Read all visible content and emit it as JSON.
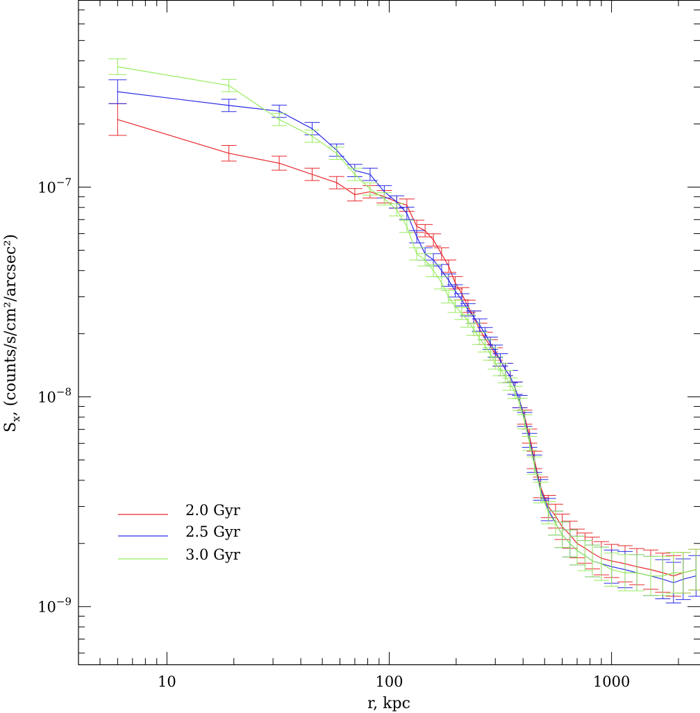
{
  "chart_data": {
    "type": "line",
    "title": "",
    "xlabel": "r, kpc",
    "ylabel": "S_x, (counts/s/cm²/arcsec²)",
    "xscale": "log",
    "yscale": "log",
    "xlim": [
      4,
      2500
    ],
    "ylim": [
      5.3e-10,
      7.8e-07
    ],
    "grid": false,
    "legend_position": "lower-left",
    "x_ticks": [
      {
        "value": 10,
        "label": "10"
      },
      {
        "value": 100,
        "label": "100"
      },
      {
        "value": 1000,
        "label": "1000"
      }
    ],
    "y_ticks": [
      {
        "value": 1e-07,
        "base": "10",
        "exp": "−7"
      },
      {
        "value": 1e-08,
        "base": "10",
        "exp": "−8"
      },
      {
        "value": 1e-09,
        "base": "10",
        "exp": "−9"
      }
    ],
    "series": [
      {
        "name": "2.0 Gyr",
        "color": "#e8262a",
        "x": [
          6,
          19,
          32,
          45,
          58,
          70,
          82,
          95,
          108,
          120,
          133,
          145,
          158,
          172,
          185,
          198,
          212,
          226,
          240,
          255,
          270,
          285,
          300,
          316,
          333,
          350,
          368,
          387,
          407,
          428,
          450,
          480,
          520,
          560,
          600,
          650,
          700,
          760,
          820,
          900,
          1000,
          1150,
          1300,
          1500,
          1700,
          1900,
          2100,
          2400
        ],
        "y": [
          2.1e-07,
          1.45e-07,
          1.3e-07,
          1.15e-07,
          1.05e-07,
          9.2e-08,
          9.5e-08,
          9e-08,
          8.5e-08,
          8.2e-08,
          6.5e-08,
          6.2e-08,
          5.6e-08,
          4.8e-08,
          4.2e-08,
          3.5e-08,
          3.1e-08,
          2.7e-08,
          2.4e-08,
          2.1e-08,
          1.9e-08,
          1.75e-08,
          1.6e-08,
          1.5e-08,
          1.35e-08,
          1.25e-08,
          1.1e-08,
          9.5e-09,
          8e-09,
          6.5e-09,
          5e-09,
          3.7e-09,
          3e-09,
          2.7e-09,
          2.4e-09,
          2.2e-09,
          2e-09,
          1.9e-09,
          1.8e-09,
          1.7e-09,
          1.65e-09,
          1.6e-09,
          1.55e-09,
          1.5e-09,
          1.45e-09,
          1.4e-09,
          1.45e-09,
          1.5e-09
        ],
        "err": [
          0.19,
          0.09,
          0.08,
          0.07,
          0.07,
          0.07,
          0.07,
          0.07,
          0.07,
          0.07,
          0.07,
          0.07,
          0.07,
          0.07,
          0.07,
          0.07,
          0.07,
          0.07,
          0.07,
          0.07,
          0.07,
          0.07,
          0.07,
          0.07,
          0.07,
          0.07,
          0.07,
          0.07,
          0.08,
          0.08,
          0.1,
          0.12,
          0.13,
          0.14,
          0.15,
          0.16,
          0.17,
          0.18,
          0.19,
          0.2,
          0.2,
          0.22,
          0.22,
          0.24,
          0.24,
          0.25,
          0.25,
          0.25
        ]
      },
      {
        "name": "2.5 Gyr",
        "color": "#2a2ae6",
        "x": [
          6,
          19,
          32,
          45,
          58,
          70,
          82,
          95,
          108,
          120,
          133,
          145,
          158,
          172,
          185,
          198,
          212,
          226,
          240,
          255,
          270,
          285,
          300,
          316,
          333,
          350,
          368,
          387,
          407,
          428,
          450,
          480,
          520,
          560,
          600,
          650,
          700,
          760,
          820,
          900,
          1000,
          1150,
          1300,
          1500,
          1700,
          1900,
          2100,
          2400
        ],
        "y": [
          2.85e-07,
          2.45e-07,
          2.3e-07,
          1.9e-07,
          1.5e-07,
          1.2e-07,
          1.15e-07,
          9.5e-08,
          8.5e-08,
          7.5e-08,
          5.8e-08,
          4.8e-08,
          4.5e-08,
          4e-08,
          3.6e-08,
          3.2e-08,
          2.9e-08,
          2.6e-08,
          2.4e-08,
          2.2e-08,
          2e-08,
          1.8e-08,
          1.65e-08,
          1.5e-08,
          1.35e-08,
          1.25e-08,
          1.1e-08,
          9.5e-09,
          7.8e-09,
          6.2e-09,
          4.8e-09,
          3.6e-09,
          2.9e-09,
          2.5e-09,
          2.2e-09,
          2e-09,
          1.85e-09,
          1.75e-09,
          1.65e-09,
          1.6e-09,
          1.55e-09,
          1.5e-09,
          1.45e-09,
          1.4e-09,
          1.35e-09,
          1.3e-09,
          1.35e-09,
          1.4e-09
        ],
        "err": [
          0.14,
          0.07,
          0.07,
          0.07,
          0.07,
          0.07,
          0.07,
          0.07,
          0.07,
          0.07,
          0.07,
          0.07,
          0.07,
          0.07,
          0.07,
          0.07,
          0.07,
          0.07,
          0.07,
          0.07,
          0.07,
          0.07,
          0.07,
          0.07,
          0.07,
          0.07,
          0.07,
          0.07,
          0.08,
          0.08,
          0.1,
          0.12,
          0.13,
          0.14,
          0.15,
          0.16,
          0.17,
          0.18,
          0.19,
          0.2,
          0.2,
          0.22,
          0.22,
          0.24,
          0.24,
          0.25,
          0.25,
          0.25
        ]
      },
      {
        "name": "3.0 Gyr",
        "color": "#96ec5e",
        "x": [
          6,
          19,
          32,
          45,
          58,
          70,
          82,
          95,
          108,
          120,
          133,
          145,
          158,
          172,
          185,
          198,
          212,
          226,
          240,
          255,
          270,
          285,
          300,
          316,
          333,
          350,
          368,
          387,
          407,
          428,
          450,
          480,
          520,
          560,
          600,
          650,
          700,
          760,
          820,
          900,
          1000,
          1150,
          1300,
          1500,
          1700,
          1900,
          2100,
          2400
        ],
        "y": [
          3.75e-07,
          3.05e-07,
          2.1e-07,
          1.75e-07,
          1.45e-07,
          1.15e-07,
          9.8e-08,
          8.8e-08,
          7.8e-08,
          6.5e-08,
          4.8e-08,
          4.5e-08,
          4e-08,
          3.5e-08,
          3e-08,
          2.7e-08,
          2.5e-08,
          2.3e-08,
          2.1e-08,
          1.9e-08,
          1.75e-08,
          1.6e-08,
          1.45e-08,
          1.35e-08,
          1.25e-08,
          1.15e-08,
          1.05e-08,
          9.2e-09,
          7.6e-09,
          6e-09,
          4.7e-09,
          3.5e-09,
          2.8e-09,
          2.5e-09,
          2.2e-09,
          2e-09,
          1.85e-09,
          1.75e-09,
          1.65e-09,
          1.6e-09,
          1.5e-09,
          1.45e-09,
          1.45e-09,
          1.4e-09,
          1.4e-09,
          1.45e-09,
          1.45e-09,
          1.5e-09
        ],
        "err": [
          0.09,
          0.07,
          0.07,
          0.07,
          0.07,
          0.07,
          0.07,
          0.07,
          0.07,
          0.07,
          0.07,
          0.07,
          0.07,
          0.07,
          0.07,
          0.07,
          0.07,
          0.07,
          0.07,
          0.07,
          0.07,
          0.07,
          0.07,
          0.07,
          0.07,
          0.07,
          0.07,
          0.07,
          0.08,
          0.08,
          0.1,
          0.12,
          0.13,
          0.14,
          0.15,
          0.16,
          0.17,
          0.18,
          0.19,
          0.2,
          0.2,
          0.22,
          0.22,
          0.24,
          0.24,
          0.25,
          0.25,
          0.25
        ]
      }
    ]
  }
}
